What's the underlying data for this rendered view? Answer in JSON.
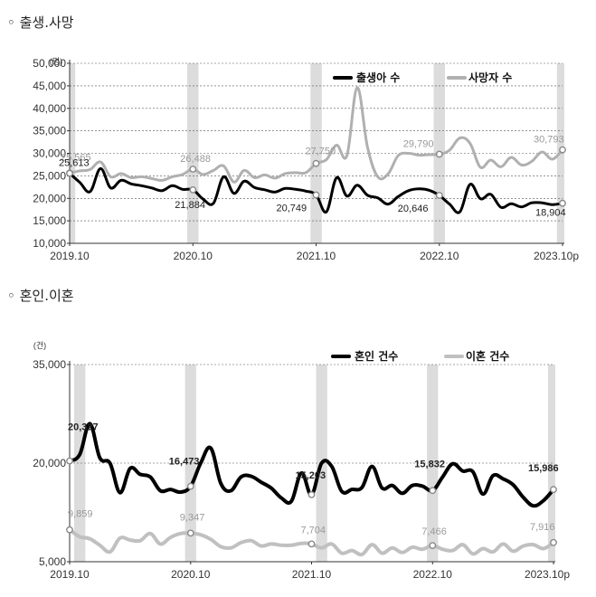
{
  "sections": [
    {
      "title": "◦ 출생.사망"
    },
    {
      "title": "◦ 혼인.이혼"
    }
  ],
  "chart_data": [
    {
      "type": "line",
      "title": "출생.사망",
      "unit": "(명)",
      "ylim": [
        10000,
        50000
      ],
      "yticks": [
        "10,000",
        "15,000",
        "20,000",
        "25,000",
        "30,000",
        "35,000",
        "40,000",
        "45,000",
        "50,000"
      ],
      "ytick_values": [
        10000,
        15000,
        20000,
        25000,
        30000,
        35000,
        40000,
        45000,
        50000
      ],
      "xticks": [
        "2019.10",
        "2020.10",
        "2021.10",
        "2022.10",
        "2023.10p"
      ],
      "xtick_index": [
        0,
        12,
        24,
        36,
        48
      ],
      "n_months": 49,
      "shaded_months": [
        0,
        12,
        24,
        36,
        48
      ],
      "legend_position": "top-right",
      "series": [
        {
          "name": "출생아 수",
          "color": "#000000",
          "values": [
            25565,
            23500,
            21500,
            26600,
            22300,
            24000,
            23200,
            22800,
            22300,
            21700,
            22800,
            22000,
            21884,
            19800,
            18900,
            24800,
            21100,
            23800,
            22400,
            21900,
            21400,
            22200,
            22000,
            21600,
            20749,
            17000,
            24600,
            20500,
            22900,
            20700,
            20100,
            18700,
            20400,
            21700,
            22100,
            21800,
            20646,
            18700,
            17000,
            23100,
            19900,
            20900,
            18000,
            18800,
            18100,
            19000,
            19000,
            18600,
            18904
          ]
        },
        {
          "name": "사망자 수",
          "color": "#b0b0b0",
          "values": [
            25613,
            26100,
            26400,
            28100,
            24800,
            25500,
            24600,
            24800,
            24400,
            24000,
            24800,
            25300,
            26488,
            25300,
            26200,
            27200,
            23600,
            26200,
            24600,
            25200,
            24500,
            25500,
            25700,
            25700,
            27750,
            28600,
            31800,
            29500,
            44600,
            31400,
            24800,
            25400,
            29500,
            30000,
            29600,
            29700,
            29790,
            30700,
            33400,
            32200,
            26900,
            28500,
            27000,
            29100,
            27400,
            28200,
            30300,
            28700,
            30793
          ]
        }
      ],
      "annotations": [
        {
          "index": 0,
          "series": 0,
          "text": "25,565",
          "color": "gray"
        },
        {
          "index": 0,
          "series": 1,
          "text": "25,613",
          "color": "dark"
        },
        {
          "index": 12,
          "series": 0,
          "text": "21,884",
          "color": "dark"
        },
        {
          "index": 12,
          "series": 1,
          "text": "26,488",
          "color": "gray"
        },
        {
          "index": 24,
          "series": 0,
          "text": "20,749",
          "color": "dark"
        },
        {
          "index": 24,
          "series": 1,
          "text": "27,750",
          "color": "gray"
        },
        {
          "index": 36,
          "series": 0,
          "text": "20,646",
          "color": "dark"
        },
        {
          "index": 36,
          "series": 1,
          "text": "29,790",
          "color": "gray"
        },
        {
          "index": 48,
          "series": 0,
          "text": "18,904",
          "color": "dark"
        },
        {
          "index": 48,
          "series": 1,
          "text": "30,793",
          "color": "gray"
        }
      ]
    },
    {
      "type": "line",
      "title": "혼인.이혼",
      "unit": "(건)",
      "ylim": [
        5000,
        35000
      ],
      "yticks": [
        "5,000",
        "20,000",
        "35,000"
      ],
      "ytick_values": [
        5000,
        20000,
        35000
      ],
      "xticks": [
        "2019.10",
        "2020.10",
        "2021.10",
        "2022.10",
        "2023.10p"
      ],
      "xtick_index": [
        0,
        12,
        24,
        36,
        48
      ],
      "n_months": 49,
      "shaded_months": [
        1,
        12,
        25,
        36,
        48
      ],
      "legend_position": "top-right",
      "series": [
        {
          "name": "혼인 건수",
          "color": "#000000",
          "values": [
            20327,
            21300,
            26000,
            20800,
            20000,
            15500,
            19200,
            18300,
            17900,
            15800,
            16000,
            15600,
            16473,
            20000,
            22300,
            16900,
            15800,
            17900,
            18000,
            17100,
            16200,
            14700,
            14200,
            18500,
            15203,
            20000,
            19500,
            15700,
            16000,
            16300,
            19500,
            16200,
            16600,
            15400,
            16600,
            16500,
            15832,
            17900,
            19900,
            18800,
            18700,
            15300,
            18100,
            17600,
            16700,
            14800,
            13500,
            14300,
            15986
          ],
          "label_bold": true
        },
        {
          "name": "이혼 건수",
          "color": "#c0c0c0",
          "values": [
            9859,
            8800,
            8500,
            7500,
            6500,
            8600,
            8300,
            8200,
            9300,
            7700,
            8700,
            9300,
            9347,
            9100,
            8400,
            7300,
            7100,
            7900,
            8200,
            7400,
            7700,
            7500,
            7500,
            7800,
            7704,
            7100,
            7700,
            6300,
            6700,
            6100,
            7600,
            6300,
            7100,
            6400,
            7200,
            6900,
            7466,
            6900,
            6700,
            7600,
            6200,
            7000,
            6500,
            7700,
            6600,
            7400,
            7600,
            7000,
            7916
          ]
        }
      ],
      "annotations": [
        {
          "index": 0,
          "series": 0,
          "text": "20,327",
          "color": "dark"
        },
        {
          "index": 0,
          "series": 1,
          "text": "9,859",
          "color": "gray"
        },
        {
          "index": 12,
          "series": 0,
          "text": "16,473",
          "color": "dark"
        },
        {
          "index": 12,
          "series": 1,
          "text": "9,347",
          "color": "gray"
        },
        {
          "index": 24,
          "series": 0,
          "text": "15,203",
          "color": "dark"
        },
        {
          "index": 24,
          "series": 1,
          "text": "7,704",
          "color": "gray"
        },
        {
          "index": 36,
          "series": 0,
          "text": "15,832",
          "color": "dark"
        },
        {
          "index": 36,
          "series": 1,
          "text": "7,466",
          "color": "gray"
        },
        {
          "index": 48,
          "series": 0,
          "text": "15,986",
          "color": "dark"
        },
        {
          "index": 48,
          "series": 1,
          "text": "7,916",
          "color": "gray"
        }
      ]
    }
  ]
}
